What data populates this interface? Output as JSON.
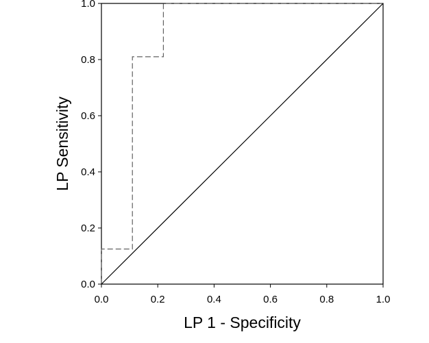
{
  "chart_data": {
    "type": "line",
    "title": "",
    "xlabel": "LP 1 - Specificity",
    "ylabel": "LP Sensitivity",
    "xlim": [
      0,
      1
    ],
    "ylim": [
      0,
      1
    ],
    "x_ticks": [
      "0.0",
      "0.2",
      "0.4",
      "0.6",
      "0.8",
      "1.0"
    ],
    "y_ticks": [
      "0.0",
      "0.2",
      "0.4",
      "0.6",
      "0.8",
      "1.0"
    ],
    "grid": false,
    "legend": "none",
    "series": [
      {
        "style": "dashed",
        "color": "#606060",
        "x": [
          0,
          0,
          0.11,
          0.11,
          0.22,
          0.22,
          1
        ],
        "y": [
          0,
          0.125,
          0.125,
          0.81,
          0.81,
          1,
          1
        ]
      },
      {
        "style": "solid",
        "color": "#000000",
        "x": [
          0,
          1
        ],
        "y": [
          0,
          1
        ]
      }
    ]
  }
}
